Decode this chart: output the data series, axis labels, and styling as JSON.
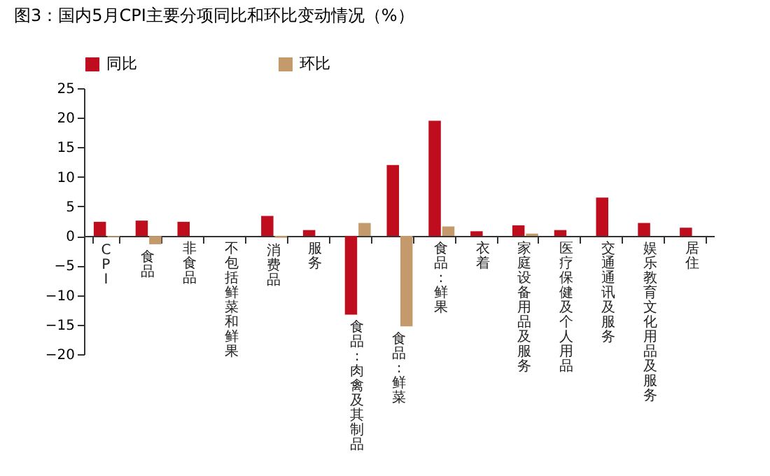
{
  "chart_data": {
    "type": "bar",
    "title": "图3：国内5月CPI主要分项同比和环比变动情况（%）",
    "categories": [
      "CPI",
      "食品",
      "非食品",
      "不包括鲜菜和鲜果",
      "消费品",
      "服务",
      "食品:肉禽及其制品",
      "食品:鲜菜",
      "食品:鲜果",
      "衣着",
      "家庭设备用品及服务",
      "医疗保健及个人用品",
      "交通通讯及服务",
      "娱乐教育文化用品及服务",
      "居住"
    ],
    "series": [
      {
        "name": "同比",
        "color": "#c00d1e",
        "values": [
          2.4,
          2.6,
          2.4,
          null,
          3.4,
          1.0,
          -13.3,
          12.0,
          19.5,
          0.8,
          1.8,
          1.0,
          6.5,
          2.2,
          1.4
        ]
      },
      {
        "name": "环比",
        "color": "#c49a6c",
        "values": [
          -0.2,
          -1.4,
          0,
          null,
          -0.3,
          0,
          2.2,
          -15.3,
          1.6,
          0,
          0.4,
          0,
          0,
          0,
          0
        ]
      }
    ],
    "ylim": [
      -20,
      25
    ],
    "yticks": [
      -20,
      -15,
      -10,
      -5,
      0,
      5,
      10,
      15,
      20,
      25
    ],
    "grid": false,
    "legend": "top"
  }
}
